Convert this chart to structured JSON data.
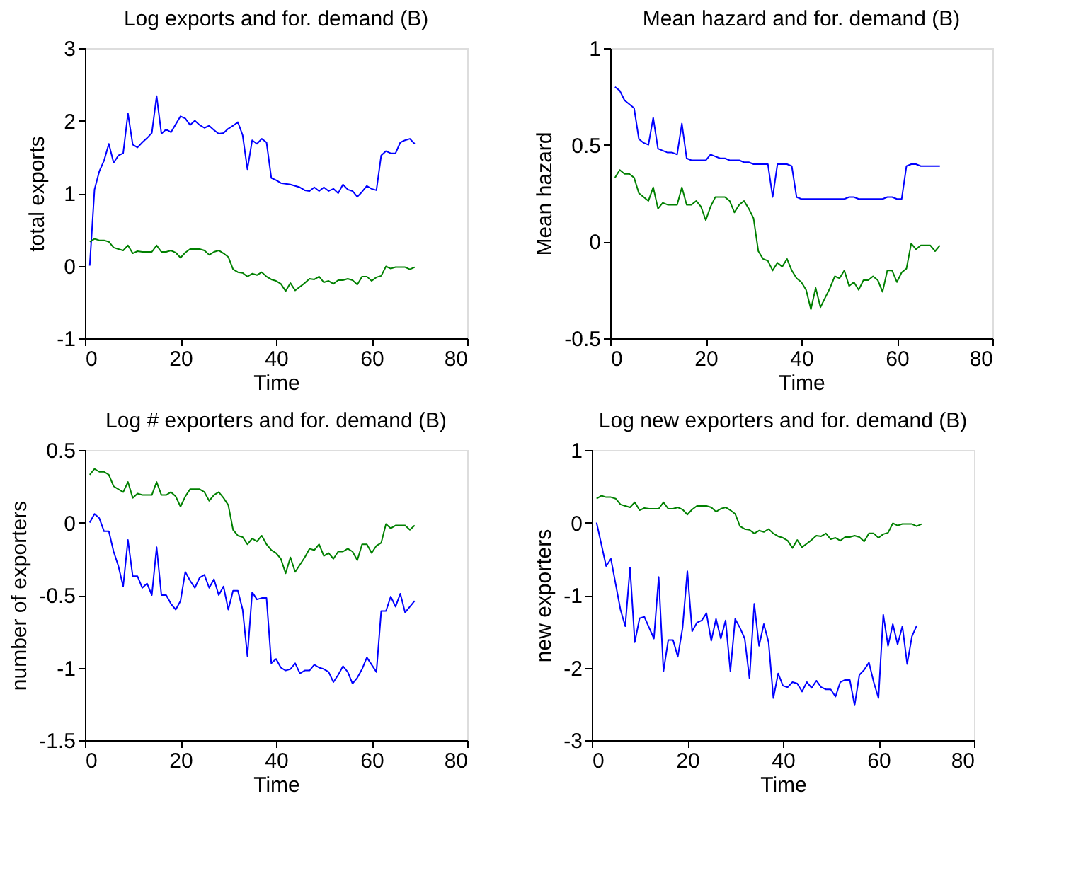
{
  "chart_data": [
    {
      "type": "line",
      "title": "Log exports and for. demand (B)",
      "xlabel": "Time",
      "ylabel": "total exports",
      "xlim": [
        0,
        80
      ],
      "xticks": [
        0,
        20,
        40,
        60,
        80
      ],
      "ylim": [
        -1,
        3
      ],
      "yticks": [
        -1,
        0,
        1,
        2,
        3
      ],
      "grid": false,
      "legend": false,
      "x": [
        1,
        2,
        3,
        4,
        5,
        6,
        7,
        8,
        9,
        10,
        11,
        12,
        13,
        14,
        15,
        16,
        17,
        18,
        19,
        20,
        21,
        22,
        23,
        24,
        25,
        26,
        27,
        28,
        29,
        30,
        31,
        32,
        33,
        34,
        35,
        36,
        37,
        38,
        39,
        40,
        41,
        42,
        43,
        44,
        45,
        46,
        47,
        48,
        49,
        50,
        51,
        52,
        53,
        54,
        55,
        56,
        57,
        58,
        59,
        60,
        61,
        62,
        63,
        64,
        65,
        66,
        67,
        68,
        69
      ],
      "series": [
        {
          "color": "#0000ff",
          "values": [
            0,
            1.05,
            1.3,
            1.45,
            1.68,
            1.42,
            1.52,
            1.55,
            2.1,
            1.67,
            1.63,
            1.7,
            1.76,
            1.83,
            2.34,
            1.82,
            1.88,
            1.84,
            1.95,
            2.06,
            2.03,
            1.94,
            2.0,
            1.94,
            1.9,
            1.93,
            1.87,
            1.82,
            1.83,
            1.89,
            1.93,
            1.98,
            1.8,
            1.33,
            1.73,
            1.68,
            1.75,
            1.7,
            1.21,
            1.18,
            1.14,
            1.13,
            1.12,
            1.1,
            1.08,
            1.04,
            1.03,
            1.08,
            1.03,
            1.08,
            1.03,
            1.06,
            1.0,
            1.12,
            1.05,
            1.03,
            0.95,
            1.02,
            1.1,
            1.06,
            1.04,
            1.52,
            1.58,
            1.55,
            1.55,
            1.7,
            1.73,
            1.75,
            1.68
          ]
        },
        {
          "color": "#008000",
          "values": [
            0.33,
            0.37,
            0.35,
            0.35,
            0.33,
            0.25,
            0.23,
            0.21,
            0.28,
            0.17,
            0.2,
            0.19,
            0.19,
            0.19,
            0.28,
            0.19,
            0.19,
            0.21,
            0.18,
            0.11,
            0.18,
            0.23,
            0.23,
            0.23,
            0.21,
            0.15,
            0.19,
            0.21,
            0.17,
            0.12,
            -0.05,
            -0.09,
            -0.1,
            -0.15,
            -0.11,
            -0.13,
            -0.09,
            -0.15,
            -0.19,
            -0.21,
            -0.25,
            -0.35,
            -0.24,
            -0.34,
            -0.29,
            -0.24,
            -0.18,
            -0.19,
            -0.15,
            -0.23,
            -0.21,
            -0.25,
            -0.2,
            -0.2,
            -0.18,
            -0.2,
            -0.26,
            -0.15,
            -0.15,
            -0.21,
            -0.16,
            -0.14,
            -0.01,
            -0.04,
            -0.02,
            -0.02,
            -0.02,
            -0.05,
            -0.02
          ]
        }
      ]
    },
    {
      "type": "line",
      "title": "Mean hazard and for. demand (B)",
      "xlabel": "Time",
      "ylabel": "Mean hazard",
      "xlim": [
        0,
        80
      ],
      "xticks": [
        0,
        20,
        40,
        60,
        80
      ],
      "ylim": [
        -0.5,
        1
      ],
      "yticks": [
        -0.5,
        0,
        0.5,
        1
      ],
      "grid": false,
      "legend": false,
      "x": [
        1,
        2,
        3,
        4,
        5,
        6,
        7,
        8,
        9,
        10,
        11,
        12,
        13,
        14,
        15,
        16,
        17,
        18,
        19,
        20,
        21,
        22,
        23,
        24,
        25,
        26,
        27,
        28,
        29,
        30,
        31,
        32,
        33,
        34,
        35,
        36,
        37,
        38,
        39,
        40,
        41,
        42,
        43,
        44,
        45,
        46,
        47,
        48,
        49,
        50,
        51,
        52,
        53,
        54,
        55,
        56,
        57,
        58,
        59,
        60,
        61,
        62,
        63,
        64,
        65,
        66,
        67,
        68,
        69
      ],
      "series": [
        {
          "color": "#0000ff",
          "values": [
            0.8,
            0.78,
            0.73,
            0.71,
            0.69,
            0.53,
            0.51,
            0.5,
            0.64,
            0.48,
            0.47,
            0.46,
            0.46,
            0.45,
            0.61,
            0.43,
            0.42,
            0.42,
            0.42,
            0.42,
            0.45,
            0.44,
            0.43,
            0.43,
            0.42,
            0.42,
            0.42,
            0.41,
            0.41,
            0.4,
            0.4,
            0.4,
            0.4,
            0.23,
            0.4,
            0.4,
            0.4,
            0.39,
            0.23,
            0.22,
            0.22,
            0.22,
            0.22,
            0.22,
            0.22,
            0.22,
            0.22,
            0.22,
            0.22,
            0.23,
            0.23,
            0.22,
            0.22,
            0.22,
            0.22,
            0.22,
            0.22,
            0.23,
            0.23,
            0.22,
            0.22,
            0.39,
            0.4,
            0.4,
            0.39,
            0.39,
            0.39,
            0.39,
            0.39
          ]
        },
        {
          "color": "#008000",
          "values": [
            0.33,
            0.37,
            0.35,
            0.35,
            0.33,
            0.25,
            0.23,
            0.21,
            0.28,
            0.17,
            0.2,
            0.19,
            0.19,
            0.19,
            0.28,
            0.19,
            0.19,
            0.21,
            0.18,
            0.11,
            0.18,
            0.23,
            0.23,
            0.23,
            0.21,
            0.15,
            0.19,
            0.21,
            0.17,
            0.12,
            -0.05,
            -0.09,
            -0.1,
            -0.15,
            -0.11,
            -0.13,
            -0.09,
            -0.15,
            -0.19,
            -0.21,
            -0.25,
            -0.35,
            -0.24,
            -0.34,
            -0.29,
            -0.24,
            -0.18,
            -0.19,
            -0.15,
            -0.23,
            -0.21,
            -0.25,
            -0.2,
            -0.2,
            -0.18,
            -0.2,
            -0.26,
            -0.15,
            -0.15,
            -0.21,
            -0.16,
            -0.14,
            -0.01,
            -0.04,
            -0.02,
            -0.02,
            -0.02,
            -0.05,
            -0.02
          ]
        }
      ]
    },
    {
      "type": "line",
      "title": "Log # exporters and for. demand (B)",
      "xlabel": "Time",
      "ylabel": "number of exporters",
      "xlim": [
        0,
        80
      ],
      "xticks": [
        0,
        20,
        40,
        60,
        80
      ],
      "ylim": [
        -1.5,
        0.5
      ],
      "yticks": [
        -1.5,
        -1,
        -0.5,
        0,
        0.5
      ],
      "grid": false,
      "legend": false,
      "x": [
        1,
        2,
        3,
        4,
        5,
        6,
        7,
        8,
        9,
        10,
        11,
        12,
        13,
        14,
        15,
        16,
        17,
        18,
        19,
        20,
        21,
        22,
        23,
        24,
        25,
        26,
        27,
        28,
        29,
        30,
        31,
        32,
        33,
        34,
        35,
        36,
        37,
        38,
        39,
        40,
        41,
        42,
        43,
        44,
        45,
        46,
        47,
        48,
        49,
        50,
        51,
        52,
        53,
        54,
        55,
        56,
        57,
        58,
        59,
        60,
        61,
        62,
        63,
        64,
        65,
        66,
        67,
        68,
        69
      ],
      "series": [
        {
          "color": "#0000ff",
          "values": [
            0,
            0.06,
            0.03,
            -0.06,
            -0.06,
            -0.2,
            -0.3,
            -0.44,
            -0.12,
            -0.37,
            -0.37,
            -0.45,
            -0.42,
            -0.5,
            -0.17,
            -0.5,
            -0.5,
            -0.56,
            -0.6,
            -0.54,
            -0.34,
            -0.4,
            -0.45,
            -0.38,
            -0.36,
            -0.45,
            -0.39,
            -0.5,
            -0.44,
            -0.6,
            -0.47,
            -0.47,
            -0.6,
            -0.92,
            -0.48,
            -0.53,
            -0.52,
            -0.52,
            -0.97,
            -0.94,
            -1.0,
            -1.02,
            -1.01,
            -0.97,
            -1.04,
            -1.02,
            -1.02,
            -0.98,
            -1.0,
            -1.01,
            -1.03,
            -1.1,
            -1.05,
            -0.99,
            -1.03,
            -1.11,
            -1.07,
            -1.01,
            -0.93,
            -0.98,
            -1.03,
            -0.61,
            -0.61,
            -0.51,
            -0.58,
            -0.49,
            -0.62,
            -0.58,
            -0.54
          ]
        },
        {
          "color": "#008000",
          "values": [
            0.33,
            0.37,
            0.35,
            0.35,
            0.33,
            0.25,
            0.23,
            0.21,
            0.28,
            0.17,
            0.2,
            0.19,
            0.19,
            0.19,
            0.28,
            0.19,
            0.19,
            0.21,
            0.18,
            0.11,
            0.18,
            0.23,
            0.23,
            0.23,
            0.21,
            0.15,
            0.19,
            0.21,
            0.17,
            0.12,
            -0.05,
            -0.09,
            -0.1,
            -0.15,
            -0.11,
            -0.13,
            -0.09,
            -0.15,
            -0.19,
            -0.21,
            -0.25,
            -0.35,
            -0.24,
            -0.34,
            -0.29,
            -0.24,
            -0.18,
            -0.19,
            -0.15,
            -0.23,
            -0.21,
            -0.25,
            -0.2,
            -0.2,
            -0.18,
            -0.2,
            -0.26,
            -0.15,
            -0.15,
            -0.21,
            -0.16,
            -0.14,
            -0.01,
            -0.04,
            -0.02,
            -0.02,
            -0.02,
            -0.05,
            -0.02
          ]
        }
      ]
    },
    {
      "type": "line",
      "title": "Log new exporters and for. demand (B)",
      "xlabel": "Time",
      "ylabel": "new exporters",
      "xlim": [
        0,
        80
      ],
      "xticks": [
        0,
        20,
        40,
        60,
        80
      ],
      "ylim": [
        -3,
        1
      ],
      "yticks": [
        -3,
        -2,
        -1,
        0,
        1
      ],
      "grid": false,
      "legend": false,
      "x": [
        1,
        2,
        3,
        4,
        5,
        6,
        7,
        8,
        9,
        10,
        11,
        12,
        13,
        14,
        15,
        16,
        17,
        18,
        19,
        20,
        21,
        22,
        23,
        24,
        25,
        26,
        27,
        28,
        29,
        30,
        31,
        32,
        33,
        34,
        35,
        36,
        37,
        38,
        39,
        40,
        41,
        42,
        43,
        44,
        45,
        46,
        47,
        48,
        49,
        50,
        51,
        52,
        53,
        54,
        55,
        56,
        57,
        58,
        59,
        60,
        61,
        62,
        63,
        64,
        65,
        66,
        67,
        68,
        69
      ],
      "series": [
        {
          "color": "#0000ff",
          "x": [
            1,
            2,
            3,
            4,
            5,
            6,
            7,
            8,
            9,
            10,
            11,
            12,
            13,
            14,
            15,
            16,
            17,
            18,
            19,
            20,
            21,
            22,
            23,
            24,
            25,
            26,
            27,
            28,
            29,
            30,
            31,
            32,
            33,
            34,
            35,
            36,
            37,
            38,
            39,
            40,
            41,
            42,
            43,
            44,
            45,
            46,
            47,
            48,
            49,
            50,
            51,
            52,
            53,
            54,
            55,
            56,
            57,
            58,
            59,
            60,
            61,
            62,
            63,
            64,
            65,
            66,
            67,
            68
          ],
          "values": [
            0,
            -0.3,
            -0.6,
            -0.5,
            -0.85,
            -1.2,
            -1.43,
            -0.62,
            -1.65,
            -1.32,
            -1.3,
            -1.45,
            -1.6,
            -0.75,
            -2.05,
            -1.62,
            -1.62,
            -1.85,
            -1.45,
            -0.67,
            -1.5,
            -1.38,
            -1.35,
            -1.25,
            -1.63,
            -1.33,
            -1.6,
            -1.35,
            -2.05,
            -1.33,
            -1.45,
            -1.6,
            -2.15,
            -1.12,
            -1.7,
            -1.4,
            -1.65,
            -2.42,
            -2.08,
            -2.25,
            -2.27,
            -2.2,
            -2.22,
            -2.33,
            -2.2,
            -2.28,
            -2.18,
            -2.27,
            -2.3,
            -2.3,
            -2.4,
            -2.2,
            -2.17,
            -2.17,
            -2.52,
            -2.1,
            -2.03,
            -1.93,
            -2.2,
            -2.42,
            -1.27,
            -1.7,
            -1.4,
            -1.68,
            -1.43,
            -1.95,
            -1.57,
            -1.42
          ]
        },
        {
          "color": "#008000",
          "values": [
            0.33,
            0.37,
            0.35,
            0.35,
            0.33,
            0.25,
            0.23,
            0.21,
            0.28,
            0.17,
            0.2,
            0.19,
            0.19,
            0.19,
            0.28,
            0.19,
            0.19,
            0.21,
            0.18,
            0.11,
            0.18,
            0.23,
            0.23,
            0.23,
            0.21,
            0.15,
            0.19,
            0.21,
            0.17,
            0.12,
            -0.05,
            -0.09,
            -0.1,
            -0.15,
            -0.11,
            -0.13,
            -0.09,
            -0.15,
            -0.19,
            -0.21,
            -0.25,
            -0.35,
            -0.24,
            -0.34,
            -0.29,
            -0.24,
            -0.18,
            -0.19,
            -0.15,
            -0.23,
            -0.21,
            -0.25,
            -0.2,
            -0.2,
            -0.18,
            -0.2,
            -0.26,
            -0.15,
            -0.15,
            -0.21,
            -0.16,
            -0.14,
            -0.01,
            -0.04,
            -0.02,
            -0.02,
            -0.02,
            -0.05,
            -0.02
          ]
        }
      ]
    }
  ]
}
